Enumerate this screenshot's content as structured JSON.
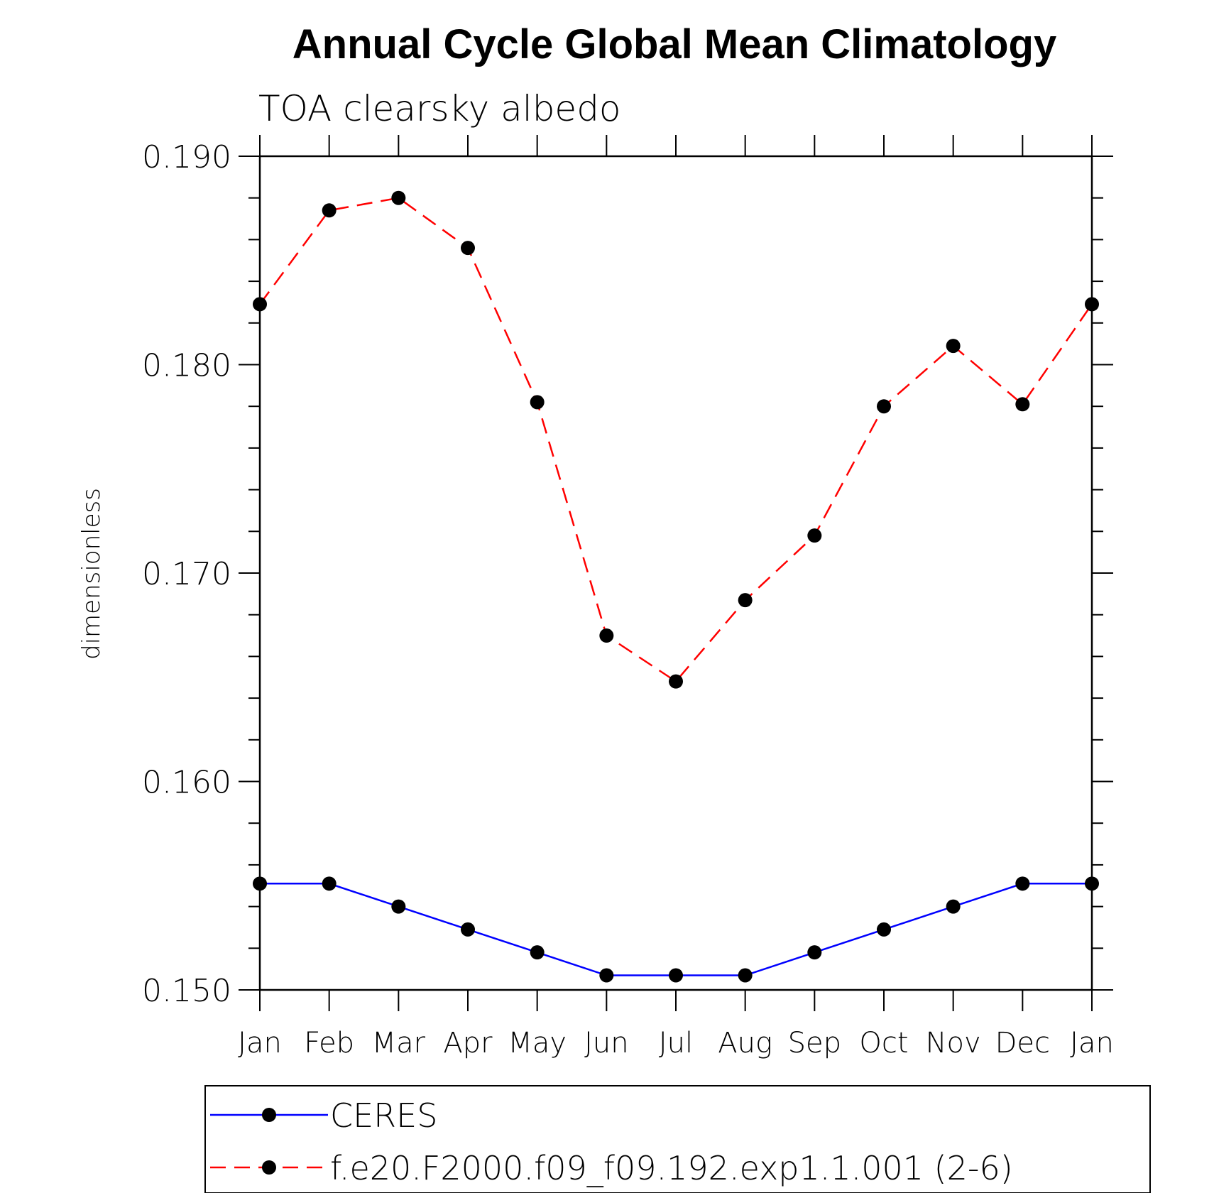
{
  "chart_data": {
    "type": "line",
    "title": "Annual Cycle Global Mean Climatology",
    "subtitle": "TOA clearsky albedo",
    "ylabel": "dimensionless",
    "xlabel": "",
    "categories": [
      "Jan",
      "Feb",
      "Mar",
      "Apr",
      "May",
      "Jun",
      "Jul",
      "Aug",
      "Sep",
      "Oct",
      "Nov",
      "Dec",
      "Jan"
    ],
    "ylim": [
      0.15,
      0.19
    ],
    "yticks": [
      "0.150",
      "0.160",
      "0.170",
      "0.180",
      "0.190"
    ],
    "series": [
      {
        "name": "CERES",
        "color": "#0000ff",
        "line_style": "solid",
        "marker": "filled-circle",
        "values": [
          0.1551,
          0.1551,
          0.154,
          0.1529,
          0.1518,
          0.1507,
          0.1507,
          0.1507,
          0.1518,
          0.1529,
          0.154,
          0.1551,
          0.1551
        ]
      },
      {
        "name": "f.e20.F2000.f09_f09.192.exp1.1.001 (2-6)",
        "color": "#ff0000",
        "line_style": "dashed",
        "marker": "filled-circle",
        "values": [
          0.1829,
          0.1874,
          0.188,
          0.1856,
          0.1782,
          0.167,
          0.1648,
          0.1687,
          0.1718,
          0.178,
          0.1809,
          0.1781,
          0.1829
        ]
      }
    ],
    "grid": false,
    "legend_position": "bottom"
  }
}
